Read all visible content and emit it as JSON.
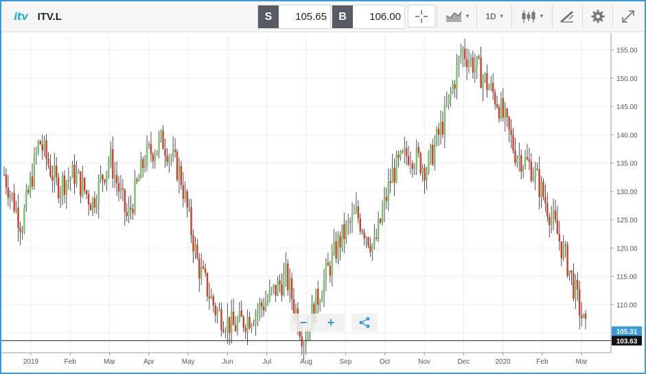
{
  "toolbar": {
    "logo_text": "itv",
    "symbol": "ITV.L",
    "sell_label": "S",
    "sell_price": "105.65",
    "buy_label": "B",
    "buy_price": "106.00",
    "interval_label": "1D",
    "icons": [
      "crosshair-icon",
      "line-chart-icon",
      "candlestick-icon",
      "drawing-tool-icon",
      "settings-gear-icon",
      "expand-icon"
    ]
  },
  "zoom": {
    "minus": "−",
    "plus": "+",
    "share_icon": "share-icon"
  },
  "colors": {
    "up": "#77c26b",
    "down": "#d23a2a",
    "wick": "#222222",
    "accent": "#3a9ad9",
    "price_tag": "#3a9ad9",
    "low_tag": "#111111"
  },
  "chart_data": {
    "type": "candlestick",
    "x_tick_labels": [
      "2019",
      "Feb",
      "Mar",
      "Apr",
      "May",
      "Jun",
      "Jul",
      "Aug",
      "Sep",
      "Oct",
      "Nov",
      "Dec",
      "2020",
      "Feb",
      "Mar"
    ],
    "y_tick_labels": [
      "155.00",
      "150.00",
      "145.00",
      "140.00",
      "135.00",
      "130.00",
      "125.00",
      "120.00",
      "115.00",
      "110.00",
      "105.00"
    ],
    "y_ticks": [
      155,
      150,
      145,
      140,
      135,
      130,
      125,
      120,
      115,
      110,
      105
    ],
    "ylim": [
      101.5,
      157.5
    ],
    "current_price": 105.31,
    "current_price_label": "105.31",
    "low_line": 103.63,
    "low_line_label": "103.63",
    "grid": true,
    "close_series": [
      {
        "month": "Dec-18",
        "close": 133
      },
      {
        "month": "Jan-19",
        "close": 124
      },
      {
        "month": "Jan-19",
        "close": 139
      },
      {
        "month": "Feb-19",
        "close": 131
      },
      {
        "month": "Feb-19",
        "close": 133
      },
      {
        "month": "Mar-19",
        "close": 128
      },
      {
        "month": "Mar-19",
        "close": 136
      },
      {
        "month": "Apr-19",
        "close": 125
      },
      {
        "month": "Apr-19",
        "close": 136
      },
      {
        "month": "May-19",
        "close": 139
      },
      {
        "month": "May-19",
        "close": 133
      },
      {
        "month": "May-19",
        "close": 117
      },
      {
        "month": "Jun-19",
        "close": 109
      },
      {
        "month": "Jun-19",
        "close": 106
      },
      {
        "month": "Jul-19",
        "close": 108
      },
      {
        "month": "Jul-19",
        "close": 111
      },
      {
        "month": "Aug-19",
        "close": 115
      },
      {
        "month": "Aug-19",
        "close": 104
      },
      {
        "month": "Sep-19",
        "close": 113
      },
      {
        "month": "Sep-19",
        "close": 121
      },
      {
        "month": "Oct-19",
        "close": 126
      },
      {
        "month": "Oct-19",
        "close": 120
      },
      {
        "month": "Oct-19",
        "close": 133
      },
      {
        "month": "Nov-19",
        "close": 137
      },
      {
        "month": "Nov-19",
        "close": 134
      },
      {
        "month": "Dec-19",
        "close": 143
      },
      {
        "month": "Dec-19",
        "close": 155
      },
      {
        "month": "Jan-20",
        "close": 151
      },
      {
        "month": "Jan-20",
        "close": 146
      },
      {
        "month": "Feb-20",
        "close": 137
      },
      {
        "month": "Feb-20",
        "close": 134
      },
      {
        "month": "Feb-20",
        "close": 126
      },
      {
        "month": "Mar-20",
        "close": 117
      },
      {
        "month": "Mar-20",
        "close": 105.31
      }
    ]
  }
}
